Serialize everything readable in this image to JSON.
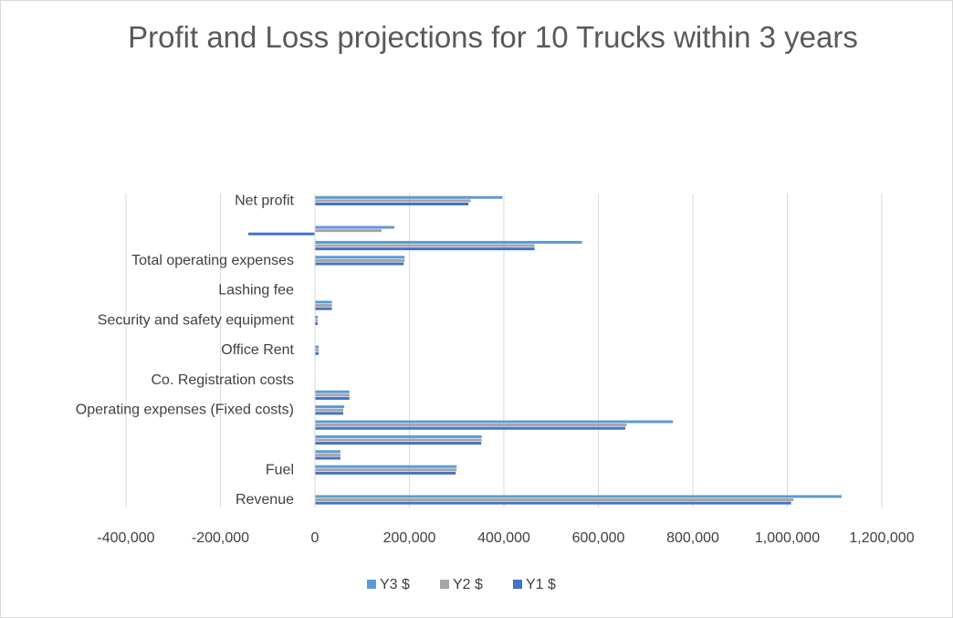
{
  "chart_data": {
    "type": "hbar",
    "title": "Profit and Loss projections for 10 Trucks within 3 years",
    "categories": [
      "Revenue",
      null,
      "Fuel",
      null,
      null,
      null,
      "Operating expenses (Fixed costs)",
      null,
      "Co. Registration costs",
      null,
      "Office Rent",
      null,
      "Security and safety equipment",
      null,
      "Lashing fee",
      null,
      "Total operating expenses",
      null,
      null,
      null,
      "Net profit"
    ],
    "series": [
      {
        "name": "Y1 $",
        "color": "#4472c4",
        "values": [
          1008000,
          0,
          298000,
          54000,
          352000,
          657000,
          60000,
          73000,
          0,
          0,
          8000,
          0,
          6000,
          36000,
          0,
          0,
          188000,
          465000,
          -141000,
          0,
          325000
        ]
      },
      {
        "name": "Y2 $",
        "color": "#a5a5a5",
        "values": [
          1013000,
          0,
          300000,
          54000,
          353000,
          660000,
          60000,
          73000,
          0,
          0,
          8000,
          0,
          6000,
          36000,
          0,
          0,
          190000,
          465000,
          141000,
          0,
          330000
        ]
      },
      {
        "name": "Y3 $",
        "color": "#5b9bd5",
        "values": [
          1115000,
          0,
          300000,
          54000,
          353000,
          758000,
          62000,
          73000,
          0,
          0,
          8000,
          0,
          6000,
          36000,
          0,
          0,
          190000,
          565000,
          168000,
          0,
          397000
        ]
      }
    ],
    "xlim": [
      -400000,
      1200000
    ],
    "xticks": [
      {
        "value": -400000,
        "label": "-400,000"
      },
      {
        "value": -200000,
        "label": "-200,000"
      },
      0,
      {
        "value": 200000,
        "label": "200,000"
      },
      {
        "value": 400000,
        "label": "400,000"
      },
      {
        "value": 600000,
        "label": "600,000"
      },
      {
        "value": 800000,
        "label": "800,000"
      },
      {
        "value": 1000000,
        "label": "1,000,000"
      },
      {
        "value": 1200000,
        "label": "1,200,000"
      }
    ],
    "grid": true,
    "legend": "bottom"
  }
}
